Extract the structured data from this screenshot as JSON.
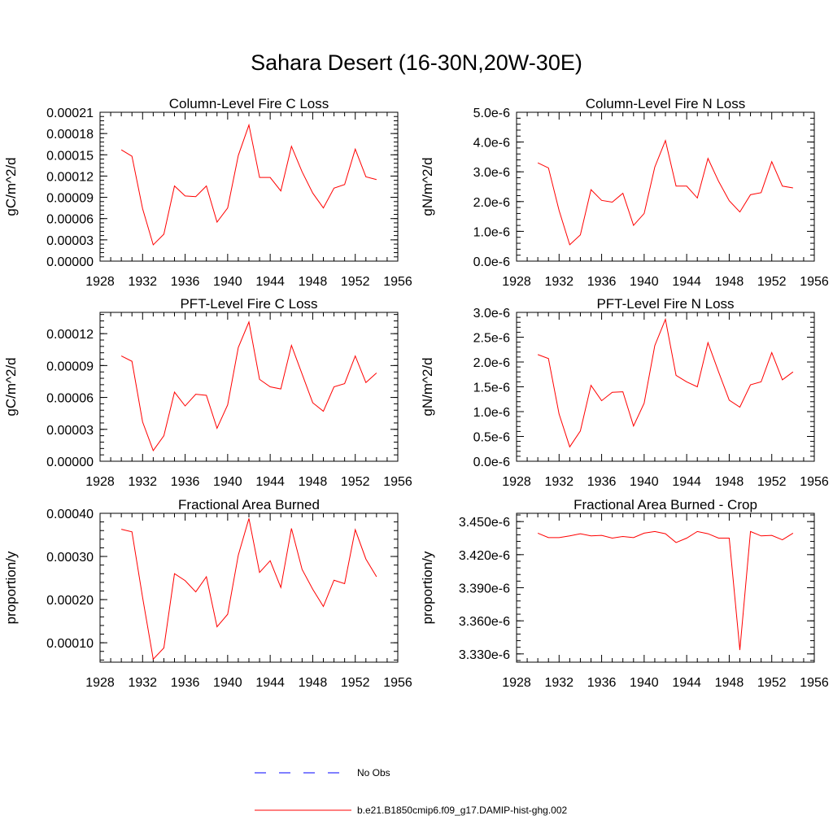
{
  "title": "Sahara Desert (16-30N,20W-30E)",
  "colors": {
    "model": "#ff0000",
    "obs": "#0000ff"
  },
  "legend": {
    "obs_label": "No Obs",
    "model_label": "b.e21.B1850cmip6.f09_g17.DAMIP-hist-ghg.002"
  },
  "chart_data": [
    {
      "type": "line",
      "title": "Column-Level Fire C Loss",
      "ylabel": "gC/m^2/d",
      "xlim": [
        1928,
        1956
      ],
      "ylim": [
        0,
        0.00021
      ],
      "xticks": [
        "1928",
        "1932",
        "1936",
        "1940",
        "1944",
        "1948",
        "1952",
        "1956"
      ],
      "yticks": [
        0,
        3e-05,
        6e-05,
        9e-05,
        0.00012,
        0.00015,
        0.00018,
        0.00021
      ],
      "ytick_labels": [
        "0.00000",
        "0.00003",
        "0.00006",
        "0.00009",
        "0.00012",
        "0.00015",
        "0.00018",
        "0.00021"
      ],
      "x": [
        1930,
        1931,
        1932,
        1933,
        1934,
        1935,
        1936,
        1937,
        1938,
        1939,
        1940,
        1941,
        1942,
        1943,
        1944,
        1945,
        1946,
        1947,
        1948,
        1949,
        1950,
        1951,
        1952,
        1953,
        1954
      ],
      "series": [
        {
          "name": "b.e21.B1850cmip6.f09_g17.DAMIP-hist-ghg.002",
          "values": [
            0.000157,
            0.000148,
            7.4e-05,
            2.3e-05,
            3.8e-05,
            0.000106,
            9.2e-05,
            9.1e-05,
            0.000106,
            5.5e-05,
            7.5e-05,
            0.000149,
            0.000192,
            0.000118,
            0.000118,
            9.9e-05,
            0.000162,
            0.000126,
            9.6e-05,
            7.5e-05,
            0.000103,
            0.000108,
            0.000158,
            0.000119,
            0.000115
          ]
        }
      ]
    },
    {
      "type": "line",
      "title": "Column-Level Fire N Loss",
      "ylabel": "gN/m^2/d",
      "xlim": [
        1928,
        1956
      ],
      "ylim": [
        0,
        5e-06
      ],
      "xticks": [
        "1928",
        "1932",
        "1936",
        "1940",
        "1944",
        "1948",
        "1952",
        "1956"
      ],
      "yticks": [
        0,
        1e-06,
        2e-06,
        3e-06,
        4e-06,
        5e-06
      ],
      "ytick_labels": [
        "0.0e-6",
        "1.0e-6",
        "2.0e-6",
        "3.0e-6",
        "4.0e-6",
        "5.0e-6"
      ],
      "x": [
        1930,
        1931,
        1932,
        1933,
        1934,
        1935,
        1936,
        1937,
        1938,
        1939,
        1940,
        1941,
        1942,
        1943,
        1944,
        1945,
        1946,
        1947,
        1948,
        1949,
        1950,
        1951,
        1952,
        1953,
        1954
      ],
      "series": [
        {
          "name": "b.e21.B1850cmip6.f09_g17.DAMIP-hist-ghg.002",
          "values": [
            3.3e-06,
            3.13e-06,
            1.7e-06,
            5.5e-07,
            8.8e-07,
            2.4e-06,
            2.04e-06,
            1.98e-06,
            2.28e-06,
            1.2e-06,
            1.6e-06,
            3.16e-06,
            4.05e-06,
            2.52e-06,
            2.52e-06,
            2.12e-06,
            3.45e-06,
            2.68e-06,
            2.03e-06,
            1.65e-06,
            2.23e-06,
            2.3e-06,
            3.34e-06,
            2.52e-06,
            2.46e-06
          ]
        }
      ]
    },
    {
      "type": "line",
      "title": "PFT-Level Fire C Loss",
      "ylabel": "gC/m^2/d",
      "xlim": [
        1928,
        1956
      ],
      "ylim": [
        0,
        0.00014
      ],
      "xticks": [
        "1928",
        "1932",
        "1936",
        "1940",
        "1944",
        "1948",
        "1952",
        "1956"
      ],
      "yticks": [
        0,
        3e-05,
        6e-05,
        9e-05,
        0.00012
      ],
      "ytick_labels": [
        "0.00000",
        "0.00003",
        "0.00006",
        "0.00009",
        "0.00012"
      ],
      "x": [
        1930,
        1931,
        1932,
        1933,
        1934,
        1935,
        1936,
        1937,
        1938,
        1939,
        1940,
        1941,
        1942,
        1943,
        1944,
        1945,
        1946,
        1947,
        1948,
        1949,
        1950,
        1951,
        1952,
        1953,
        1954
      ],
      "series": [
        {
          "name": "b.e21.B1850cmip6.f09_g17.DAMIP-hist-ghg.002",
          "values": [
            9.9e-05,
            9.4e-05,
            3.7e-05,
            1e-05,
            2.4e-05,
            6.5e-05,
            5.2e-05,
            6.3e-05,
            6.2e-05,
            3.1e-05,
            5.3e-05,
            0.000107,
            0.000131,
            7.7e-05,
            7e-05,
            6.8e-05,
            0.000109,
            8.2e-05,
            5.5e-05,
            4.7e-05,
            7e-05,
            7.3e-05,
            9.9e-05,
            7.4e-05,
            8.3e-05
          ]
        }
      ]
    },
    {
      "type": "line",
      "title": "PFT-Level Fire N Loss",
      "ylabel": "gN/m^2/d",
      "xlim": [
        1928,
        1956
      ],
      "ylim": [
        0,
        3e-06
      ],
      "xticks": [
        "1928",
        "1932",
        "1936",
        "1940",
        "1944",
        "1948",
        "1952",
        "1956"
      ],
      "yticks": [
        0,
        5e-07,
        1e-06,
        1.5e-06,
        2e-06,
        2.5e-06,
        3e-06
      ],
      "ytick_labels": [
        "0.0e-6",
        "0.5e-6",
        "1.0e-6",
        "1.5e-6",
        "2.0e-6",
        "2.5e-6",
        "3.0e-6"
      ],
      "x": [
        1930,
        1931,
        1932,
        1933,
        1934,
        1935,
        1936,
        1937,
        1938,
        1939,
        1940,
        1941,
        1942,
        1943,
        1944,
        1945,
        1946,
        1947,
        1948,
        1949,
        1950,
        1951,
        1952,
        1953,
        1954
      ],
      "series": [
        {
          "name": "b.e21.B1850cmip6.f09_g17.DAMIP-hist-ghg.002",
          "values": [
            2.15e-06,
            2.07e-06,
            9.5e-07,
            2.9e-07,
            6.1e-07,
            1.53e-06,
            1.22e-06,
            1.39e-06,
            1.4e-06,
            7.1e-07,
            1.17e-06,
            2.33e-06,
            2.86e-06,
            1.73e-06,
            1.6e-06,
            1.5e-06,
            2.39e-06,
            1.8e-06,
            1.23e-06,
            1.09e-06,
            1.54e-06,
            1.6e-06,
            2.19e-06,
            1.64e-06,
            1.8e-06
          ]
        }
      ]
    },
    {
      "type": "line",
      "title": "Fractional Area Burned",
      "ylabel": "proportion/y",
      "xlim": [
        1928,
        1956
      ],
      "ylim": [
        5.5e-05,
        0.0004
      ],
      "xticks": [
        "1928",
        "1932",
        "1936",
        "1940",
        "1944",
        "1948",
        "1952",
        "1956"
      ],
      "yticks": [
        0.0001,
        0.0002,
        0.0003,
        0.0004
      ],
      "ytick_labels": [
        "0.00010",
        "0.00020",
        "0.00030",
        "0.00040"
      ],
      "x": [
        1930,
        1931,
        1932,
        1933,
        1934,
        1935,
        1936,
        1937,
        1938,
        1939,
        1940,
        1941,
        1942,
        1943,
        1944,
        1945,
        1946,
        1947,
        1948,
        1949,
        1950,
        1951,
        1952,
        1953,
        1954
      ],
      "series": [
        {
          "name": "b.e21.B1850cmip6.f09_g17.DAMIP-hist-ghg.002",
          "values": [
            0.000363,
            0.000357,
            0.000205,
            6.2e-05,
            8.8e-05,
            0.00026,
            0.000244,
            0.000218,
            0.000253,
            0.000137,
            0.000166,
            0.000303,
            0.000388,
            0.000263,
            0.00029,
            0.000228,
            0.000365,
            0.00027,
            0.000224,
            0.000184,
            0.000245,
            0.000237,
            0.000362,
            0.000294,
            0.000253
          ]
        }
      ]
    },
    {
      "type": "line",
      "title": "Fractional Area Burned - Crop",
      "ylabel": "proportion/y",
      "xlim": [
        1928,
        1956
      ],
      "ylim": [
        3.3225e-06,
        3.4575e-06
      ],
      "xticks": [
        "1928",
        "1932",
        "1936",
        "1940",
        "1944",
        "1948",
        "1952",
        "1956"
      ],
      "yticks": [
        3.33e-06,
        3.36e-06,
        3.39e-06,
        3.42e-06,
        3.45e-06
      ],
      "ytick_labels": [
        "3.330e-6",
        "3.360e-6",
        "3.390e-6",
        "3.420e-6",
        "3.450e-6"
      ],
      "x": [
        1930,
        1931,
        1932,
        1933,
        1934,
        1935,
        1936,
        1937,
        1938,
        1939,
        1940,
        1941,
        1942,
        1943,
        1944,
        1945,
        1946,
        1947,
        1948,
        1949,
        1950,
        1951,
        1952,
        1953,
        1954
      ],
      "series": [
        {
          "name": "b.e21.B1850cmip6.f09_g17.DAMIP-hist-ghg.002",
          "values": [
            3.4395e-06,
            3.4355e-06,
            3.4355e-06,
            3.437e-06,
            3.439e-06,
            3.437e-06,
            3.4375e-06,
            3.435e-06,
            3.4365e-06,
            3.4355e-06,
            3.4395e-06,
            3.441e-06,
            3.439e-06,
            3.431e-06,
            3.435e-06,
            3.441e-06,
            3.439e-06,
            3.435e-06,
            3.435e-06,
            3.3335e-06,
            3.441e-06,
            3.437e-06,
            3.4375e-06,
            3.4335e-06,
            3.4395e-06
          ]
        }
      ]
    }
  ]
}
